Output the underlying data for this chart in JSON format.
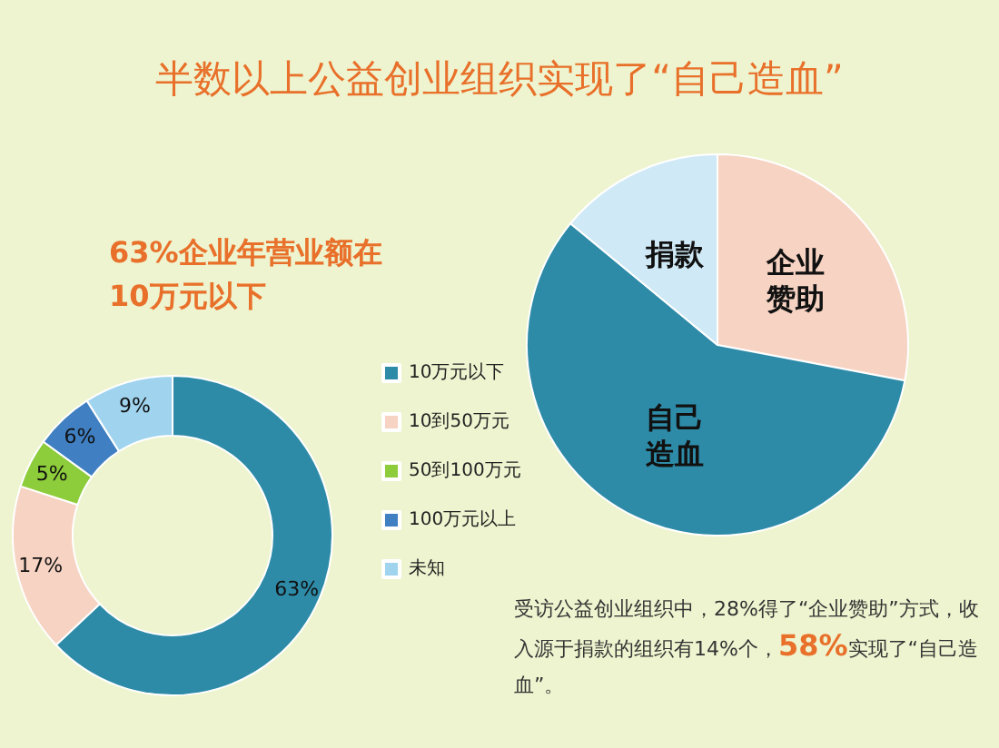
{
  "chart_data": [
    {
      "type": "pie",
      "title": "半数以上公益创业组织实现了“自己造血”",
      "categories": [
        "企业赞助",
        "自己造血",
        "捐款"
      ],
      "values": [
        28,
        58,
        14
      ],
      "colors": [
        "#f7d3c3",
        "#2e8ba8",
        "#cfe9f6"
      ],
      "legend": false,
      "annotations": [
        "受访公益创业组织中，28%得了“企业赞助”方式，收入源于捐款的组织有14%个，58%实现了“自己造血”。"
      ]
    },
    {
      "type": "donut",
      "title": "63%企业年营业额在\n10万元以下",
      "categories": [
        "10万元以下",
        "10到50万元",
        "50到100万元",
        "100万元以上",
        "未知"
      ],
      "values": [
        63,
        17,
        5,
        6,
        9
      ],
      "colors": [
        "#2e8ba8",
        "#f7d3c3",
        "#8dcc3a",
        "#3f7fc2",
        "#9fd3ee"
      ],
      "value_labels": [
        "63%",
        "17%",
        "5%",
        "6%",
        "9%"
      ],
      "legend": "right"
    }
  ]
}
